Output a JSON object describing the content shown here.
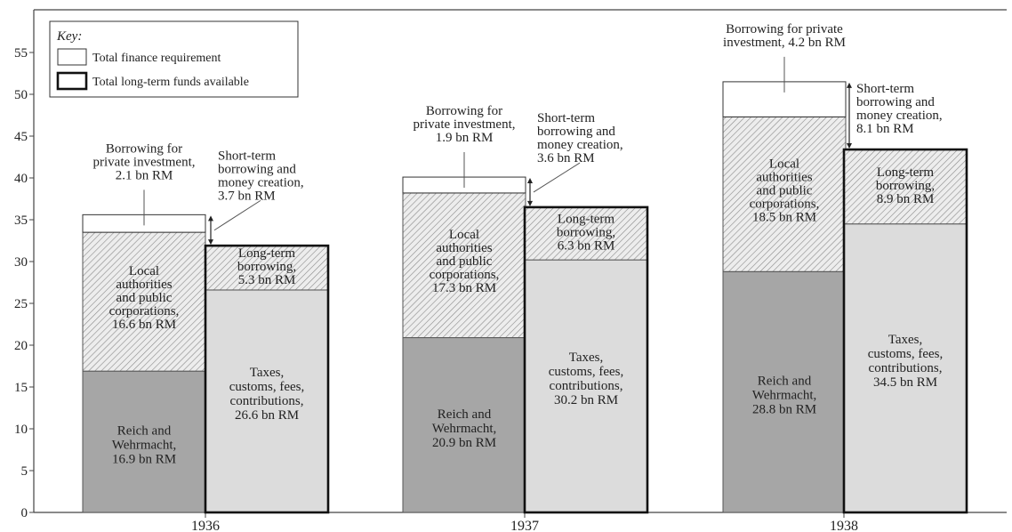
{
  "chart_data": {
    "type": "bar",
    "categories": [
      "1936",
      "1937",
      "1938"
    ],
    "ylim": [
      0,
      58
    ],
    "yticks": [
      0,
      5,
      10,
      15,
      20,
      25,
      30,
      35,
      40,
      45,
      50,
      55
    ],
    "grid": false,
    "legend": {
      "placement": "top-left",
      "title": "Key:",
      "items": [
        {
          "label": "Total finance requirement",
          "style": "thin"
        },
        {
          "label": "Total long-term funds available",
          "style": "thick"
        }
      ]
    },
    "stacks": [
      {
        "name": "Total finance requirement",
        "segments": [
          {
            "name": "Reich and Wehrmacht",
            "values": [
              16.9,
              20.9,
              28.8
            ],
            "color": "#a6a6a6",
            "pattern": "solid"
          },
          {
            "name": "Local authorities and public corporations",
            "values": [
              16.6,
              17.3,
              18.5
            ],
            "color": "#e0e0e0",
            "pattern": "hatch"
          },
          {
            "name": "Borrowing for private investment",
            "values": [
              2.1,
              1.9,
              4.2
            ],
            "color": "#ffffff",
            "pattern": "solid"
          }
        ]
      },
      {
        "name": "Total long-term funds available",
        "segments": [
          {
            "name": "Taxes, customs, fees, contributions",
            "values": [
              26.6,
              30.2,
              34.5
            ],
            "color": "#dcdcdc",
            "pattern": "solid"
          },
          {
            "name": "Long-term borrowing",
            "values": [
              5.3,
              6.3,
              8.9
            ],
            "color": "#eeeeee",
            "pattern": "hatch"
          }
        ]
      }
    ],
    "short_term_gap": [
      3.7,
      3.6,
      8.1
    ],
    "labels": {
      "reich": [
        [
          "Reich and",
          "Wehrmacht,",
          "16.9 bn RM"
        ],
        [
          "Reich and",
          "Wehrmacht,",
          "20.9 bn RM"
        ],
        [
          "Reich and",
          "Wehrmacht,",
          "28.8 bn RM"
        ]
      ],
      "local": [
        [
          "Local",
          "authorities",
          "and public",
          "corporations,",
          "16.6 bn RM"
        ],
        [
          "Local",
          "authorities",
          "and public",
          "corporations,",
          "17.3 bn RM"
        ],
        [
          "Local",
          "authorities",
          "and public",
          "corporations,",
          "18.5 bn RM"
        ]
      ],
      "private": [
        [
          "Borrowing for",
          "private investment,",
          "2.1 bn RM"
        ],
        [
          "Borrowing for",
          "private investment,",
          "1.9 bn RM"
        ],
        [
          "Borrowing for private",
          "investment, 4.2 bn RM"
        ]
      ],
      "taxes": [
        [
          "Taxes,",
          "customs, fees,",
          "contributions,",
          "26.6 bn RM"
        ],
        [
          "Taxes,",
          "customs, fees,",
          "contributions,",
          "30.2 bn RM"
        ],
        [
          "Taxes,",
          "customs, fees,",
          "contributions,",
          "34.5 bn RM"
        ]
      ],
      "longterm": [
        [
          "Long-term",
          "borrowing,",
          "5.3 bn RM"
        ],
        [
          "Long-term",
          "borrowing,",
          "6.3 bn RM"
        ],
        [
          "Long-term",
          "borrowing,",
          "8.9 bn RM"
        ]
      ],
      "shortterm": [
        [
          "Short-term",
          "borrowing and",
          "money creation,",
          "3.7 bn RM"
        ],
        [
          "Short-term",
          "borrowing and",
          "money creation,",
          "3.6 bn RM"
        ],
        [
          "Short-term",
          "borrowing and",
          "money creation,",
          "8.1 bn RM"
        ]
      ]
    }
  }
}
